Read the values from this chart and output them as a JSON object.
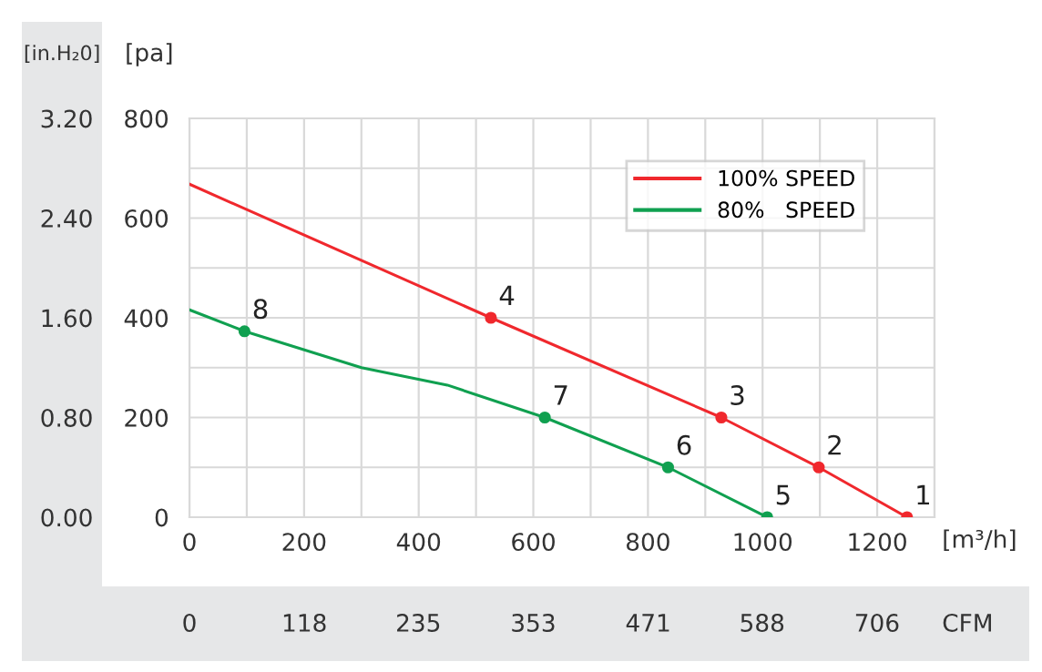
{
  "chart_data": {
    "type": "line",
    "ylabel": "[pa]",
    "xlabel": "[m³/h]",
    "y2label": "[in.H₂0]",
    "x2label": "CFM",
    "xlim": [
      0,
      1300
    ],
    "xticks": [
      0,
      {
        "value": 100,
        "label": null
      },
      200,
      {
        "value": 300,
        "label": null
      },
      400,
      {
        "value": 500,
        "label": null
      },
      600,
      {
        "value": 700,
        "label": null
      },
      800,
      {
        "value": 900,
        "label": null
      },
      1000,
      {
        "value": 1100,
        "label": null
      },
      1200,
      {
        "value": 1300,
        "label": null
      }
    ],
    "ylim": [
      0,
      800
    ],
    "yticks": [
      0,
      {
        "value": 100,
        "label": null
      },
      200,
      {
        "value": 300,
        "label": null
      },
      400,
      {
        "value": 500,
        "label": null
      },
      600,
      {
        "value": 700,
        "label": null
      },
      800
    ],
    "y2lim": [
      0,
      3.2
    ],
    "y2ticks": [
      {
        "value": 0,
        "label": "0.00"
      },
      {
        "value": 0.8,
        "label": "0.80"
      },
      {
        "value": 1.6,
        "label": "1.60"
      },
      {
        "value": 2.4,
        "label": "2.40"
      },
      {
        "value": 3.2,
        "label": "3.20"
      }
    ],
    "x2lim": [
      0,
      765
    ],
    "x2ticks": [
      0,
      118,
      235,
      353,
      471,
      588,
      706
    ],
    "grid": true,
    "legend": "top right",
    "line_style": "solid",
    "series": [
      {
        "name": "100% SPEED",
        "color": "#f0282d",
        "x": [
          0,
          526,
          928,
          1098,
          1252
        ],
        "values": [
          668,
          400,
          200,
          100,
          0
        ]
      },
      {
        "name": "80%   SPEED",
        "color": "#10a050",
        "x": [
          0,
          96,
          300,
          450,
          620,
          835,
          1008
        ],
        "values": [
          416,
          373,
          300,
          265,
          200,
          100,
          0
        ]
      },
      {
        "type": "scatter",
        "color": "#f0282d",
        "marker": "circle",
        "x": [
          1252,
          1098,
          928,
          526
        ],
        "values": [
          0,
          100,
          200,
          400
        ]
      },
      {
        "type": "scatter",
        "color": "#10a050",
        "marker": "circle",
        "x": [
          1008,
          835,
          620,
          96
        ],
        "values": [
          0,
          100,
          200,
          373
        ]
      }
    ],
    "annotations": [
      {
        "text": "1",
        "x": 1252,
        "y": 0
      },
      {
        "text": "2",
        "x": 1098,
        "y": 100
      },
      {
        "text": "3",
        "x": 928,
        "y": 200
      },
      {
        "text": "4",
        "x": 526,
        "y": 400
      },
      {
        "text": "5",
        "x": 1008,
        "y": 0
      },
      {
        "text": "6",
        "x": 835,
        "y": 100
      },
      {
        "text": "7",
        "x": 620,
        "y": 200
      },
      {
        "text": "8",
        "x": 96,
        "y": 373
      }
    ]
  }
}
